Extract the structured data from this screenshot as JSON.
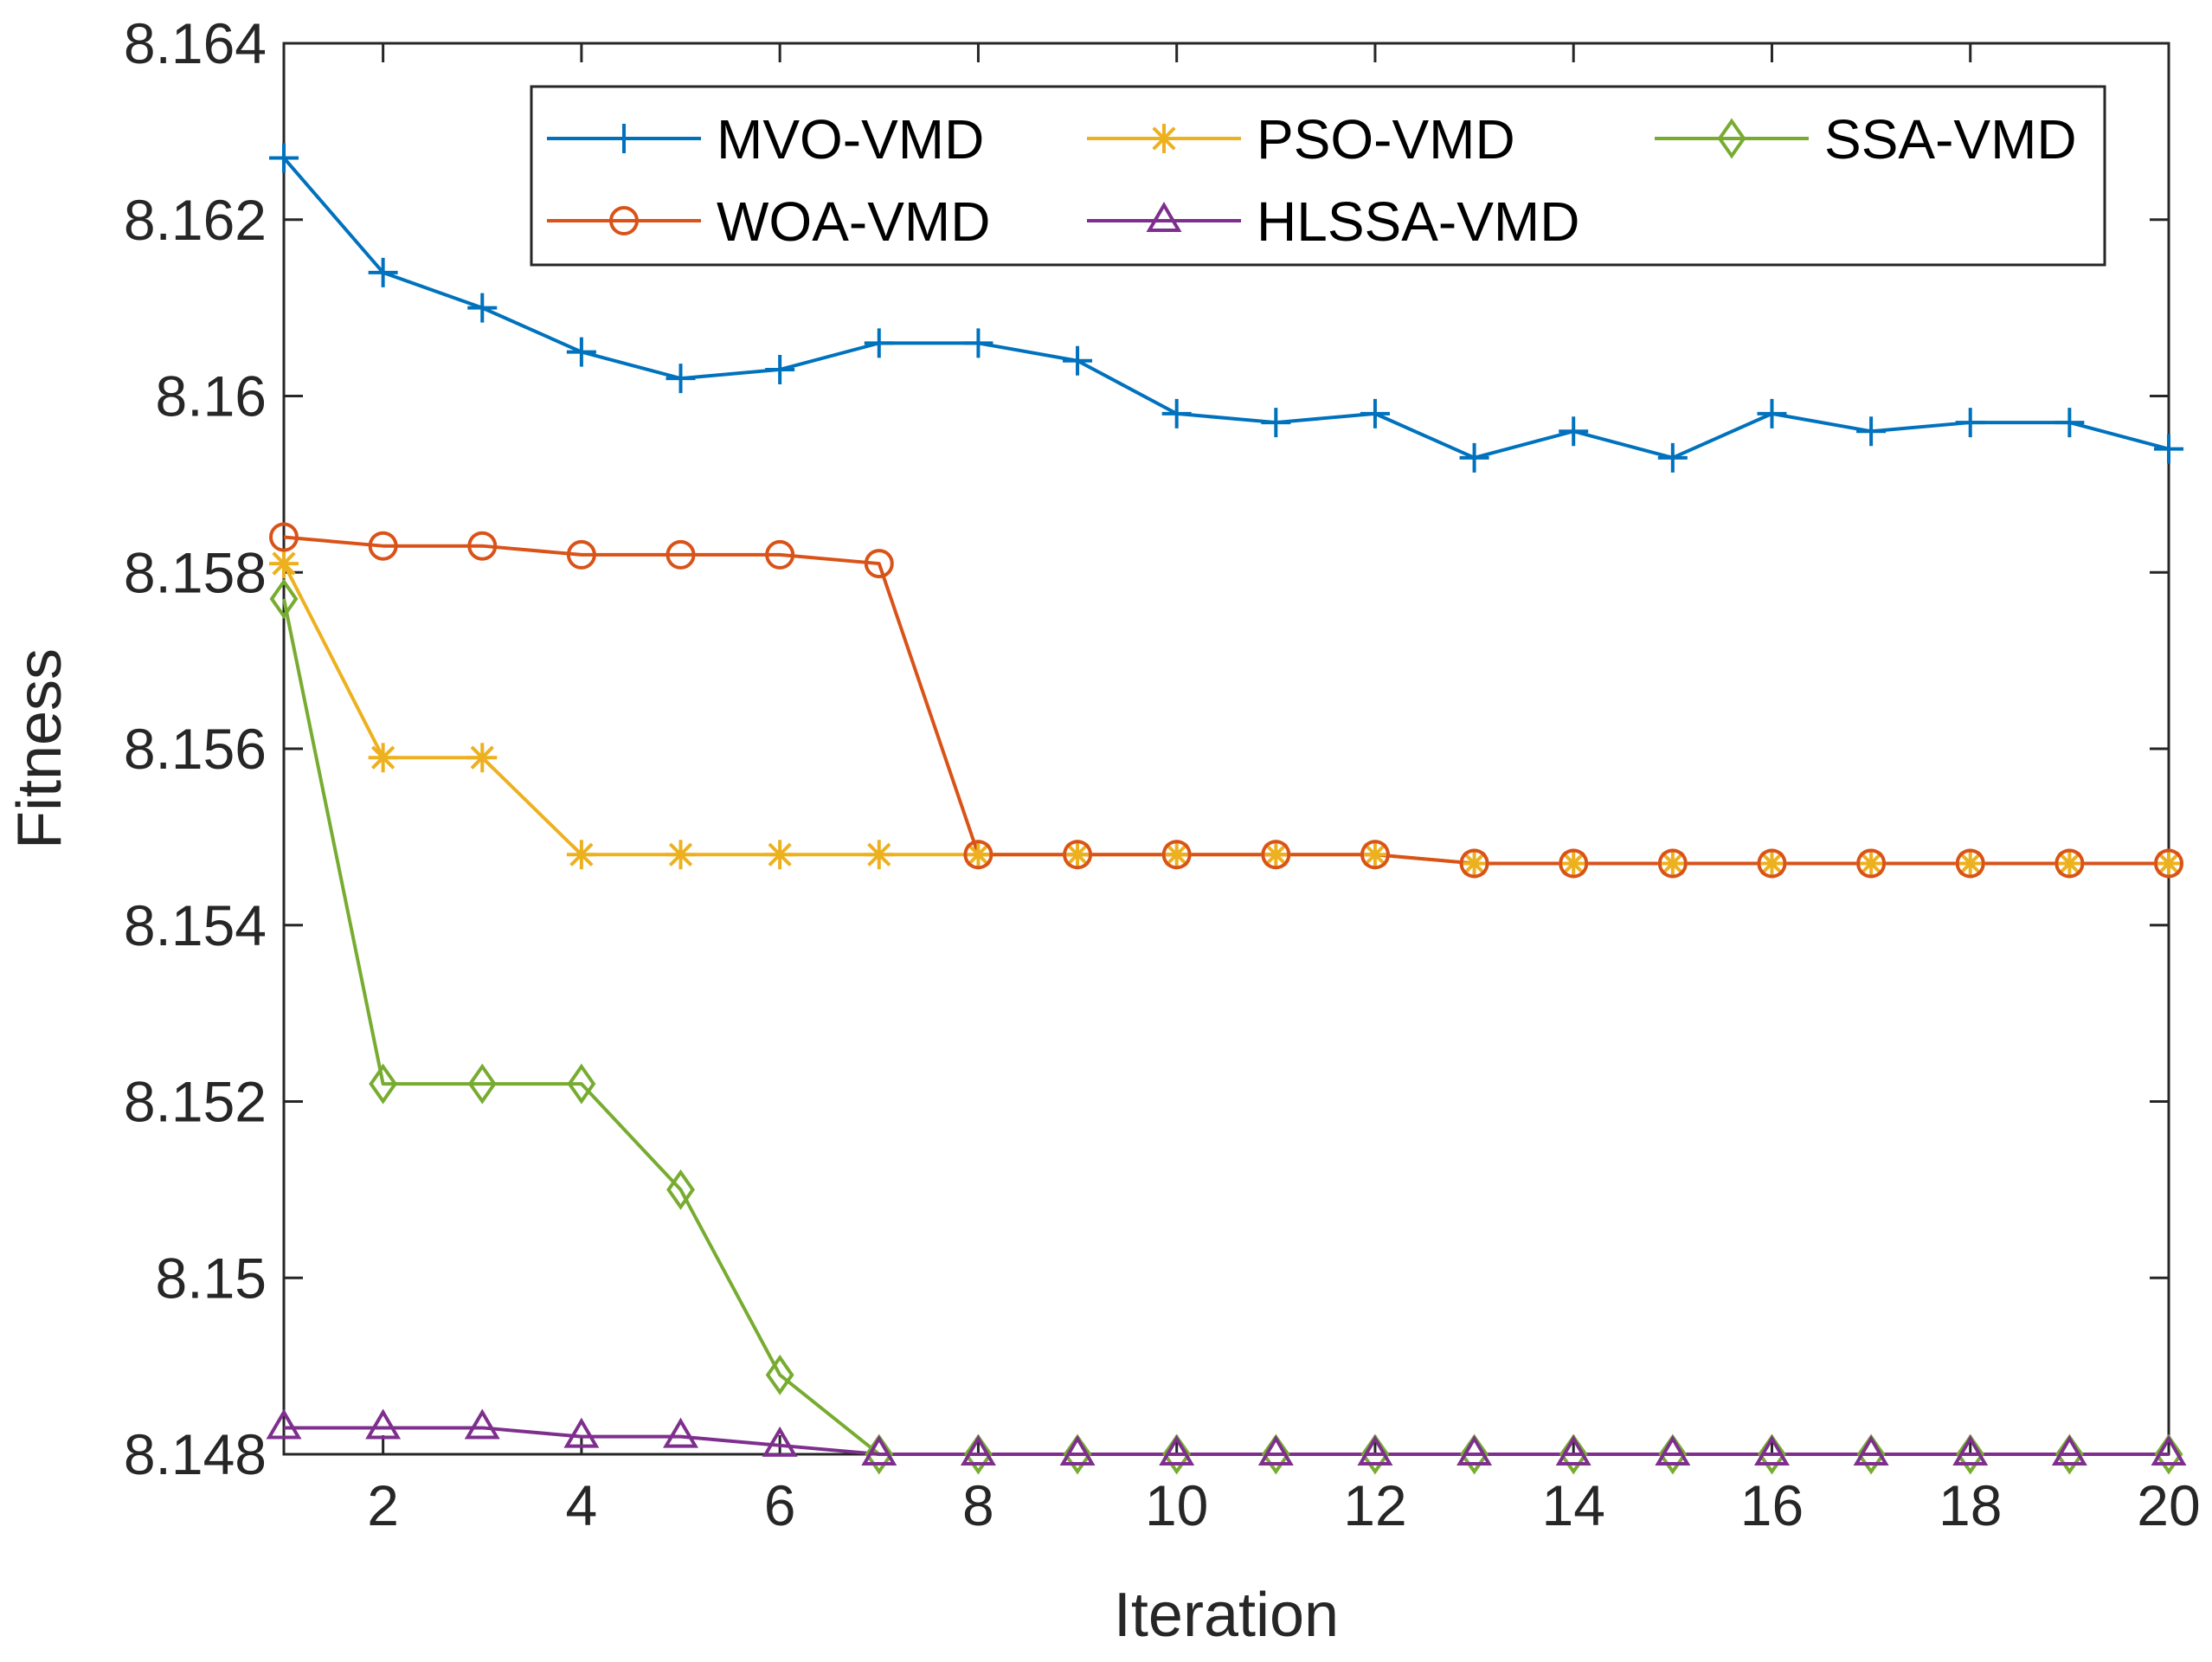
{
  "chart_data": {
    "type": "line",
    "title": "",
    "xlabel": "Iteration",
    "ylabel": "Fitness",
    "xlim": [
      1,
      20
    ],
    "ylim": [
      8.148,
      8.164
    ],
    "xticks": [
      2,
      4,
      6,
      8,
      10,
      12,
      14,
      16,
      18,
      20
    ],
    "xtick_labels": [
      "2",
      "4",
      "6",
      "8",
      "10",
      "12",
      "14",
      "16",
      "18",
      "20"
    ],
    "yticks": [
      8.148,
      8.15,
      8.152,
      8.154,
      8.156,
      8.158,
      8.16,
      8.162,
      8.164
    ],
    "ytick_labels": [
      "8.148",
      "8.15",
      "8.152",
      "8.154",
      "8.156",
      "8.158",
      "8.16",
      "8.162",
      "8.164"
    ],
    "grid": false,
    "legend_position": "top-right",
    "x": [
      1,
      2,
      3,
      4,
      5,
      6,
      7,
      8,
      9,
      10,
      11,
      12,
      13,
      14,
      15,
      16,
      17,
      18,
      19,
      20
    ],
    "series": [
      {
        "name": "MVO-VMD",
        "color": "#0072BD",
        "marker": "plus",
        "values": [
          8.1627,
          8.1614,
          8.161,
          8.1605,
          8.1602,
          8.1603,
          8.1606,
          8.1606,
          8.1604,
          8.1598,
          8.1597,
          8.1598,
          8.1593,
          8.1596,
          8.1593,
          8.1598,
          8.1596,
          8.1597,
          8.1597,
          8.1594
        ]
      },
      {
        "name": "PSO-VMD",
        "color": "#EDB120",
        "marker": "star",
        "values": [
          8.1581,
          8.1559,
          8.1559,
          8.1548,
          8.1548,
          8.1548,
          8.1548,
          8.1548,
          8.1548,
          8.1548,
          8.1548,
          8.1548,
          8.1547,
          8.1547,
          8.1547,
          8.1547,
          8.1547,
          8.1547,
          8.1547,
          8.1547
        ]
      },
      {
        "name": "SSA-VMD",
        "color": "#77AC30",
        "marker": "diamond",
        "values": [
          8.1577,
          8.1522,
          8.1522,
          8.1522,
          8.151,
          8.1489,
          8.148,
          8.148,
          8.148,
          8.148,
          8.148,
          8.148,
          8.148,
          8.148,
          8.148,
          8.148,
          8.148,
          8.148,
          8.148,
          8.148
        ]
      },
      {
        "name": "WOA-VMD",
        "color": "#D95319",
        "marker": "circle",
        "values": [
          8.1584,
          8.1583,
          8.1583,
          8.1582,
          8.1582,
          8.1582,
          8.1581,
          8.1548,
          8.1548,
          8.1548,
          8.1548,
          8.1548,
          8.1547,
          8.1547,
          8.1547,
          8.1547,
          8.1547,
          8.1547,
          8.1547,
          8.1547
        ]
      },
      {
        "name": "HLSSA-VMD",
        "color": "#7E2F8E",
        "marker": "triangle",
        "values": [
          8.1483,
          8.1483,
          8.1483,
          8.1482,
          8.1482,
          8.1481,
          8.148,
          8.148,
          8.148,
          8.148,
          8.148,
          8.148,
          8.148,
          8.148,
          8.148,
          8.148,
          8.148,
          8.148,
          8.148,
          8.148
        ]
      }
    ]
  }
}
